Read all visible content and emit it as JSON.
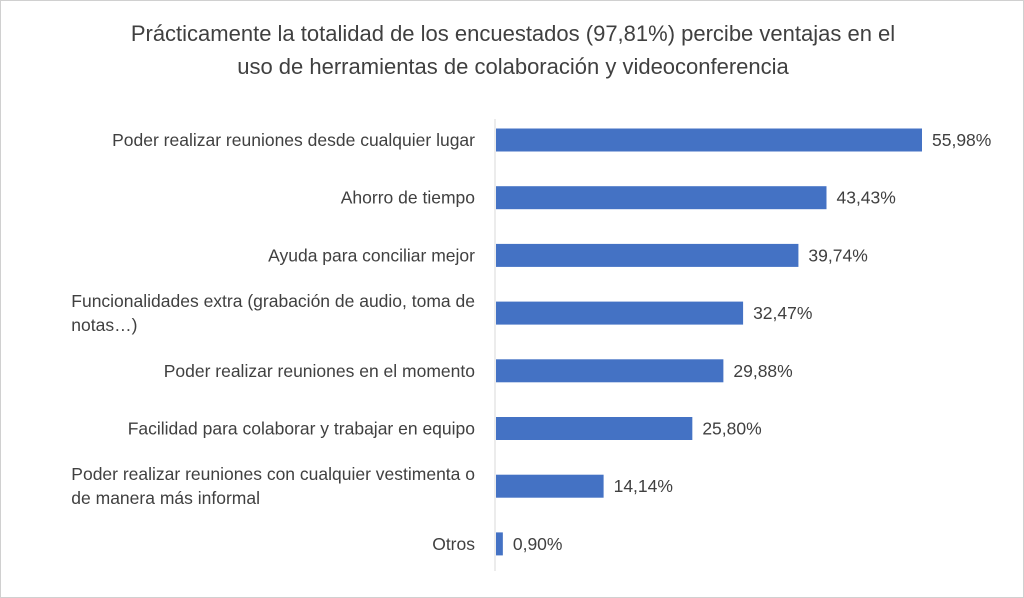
{
  "chart_data": {
    "type": "bar",
    "orientation": "horizontal",
    "title_lines": [
      "Prácticamente la totalidad de los encuestados (97,81%) percibe ventajas en el",
      "uso de herramientas de colaboración y videoconferencia"
    ],
    "categories": [
      [
        "Poder realizar reuniones desde cualquier lugar"
      ],
      [
        "Ahorro de tiempo"
      ],
      [
        "Ayuda para conciliar mejor"
      ],
      [
        "Funcionalidades extra (grabación de audio, toma de",
        "notas…)"
      ],
      [
        "Poder realizar reuniones en el momento"
      ],
      [
        "Facilidad para colaborar y trabajar en equipo"
      ],
      [
        "Poder realizar reuniones con cualquier vestimenta o",
        "de manera más informal"
      ],
      [
        "Otros"
      ]
    ],
    "values": [
      55.98,
      43.43,
      39.74,
      32.47,
      29.88,
      25.8,
      14.14,
      0.9
    ],
    "value_labels": [
      "55,98%",
      "43,43%",
      "39,74%",
      "32,47%",
      "29,88%",
      "25,80%",
      "14,14%",
      "0,90%"
    ],
    "bar_color": "#4472C4",
    "xlim": [
      0,
      56
    ],
    "grid": false,
    "legend": "none"
  }
}
